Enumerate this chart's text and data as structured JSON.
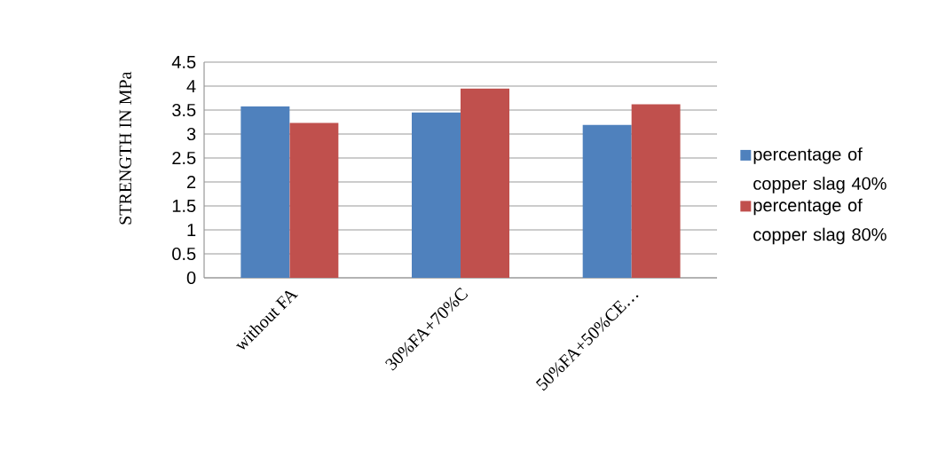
{
  "chart_data": {
    "type": "bar",
    "ylabel": "STRENGTH    IN  MPa",
    "categories": [
      "without FA",
      "30%FA+70%C",
      "50%FA+50%CE…"
    ],
    "series": [
      {
        "name": "percentage of copper slag 40%",
        "color": "#4f81bd",
        "values": [
          3.58,
          3.45,
          3.19
        ]
      },
      {
        "name": "percentage of copper slag 80%",
        "color": "#c0504d",
        "values": [
          3.23,
          3.95,
          3.62
        ]
      }
    ],
    "ylim": [
      0,
      4.5
    ],
    "yticks": [
      0,
      0.5,
      1,
      1.5,
      2,
      2.5,
      3,
      3.5,
      4,
      4.5
    ],
    "grid": "y",
    "legend": "right"
  }
}
